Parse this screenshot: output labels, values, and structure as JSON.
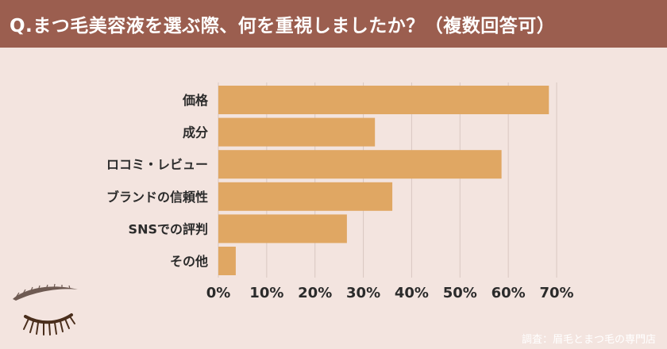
{
  "header": {
    "title": "Q.まつ毛美容液を選ぶ際、何を重視しましたか？（複数回答可）"
  },
  "colors": {
    "header_bg": "#9b5e4f",
    "background": "#f3e4df",
    "bar": "#e0a763",
    "grid": "#d9c7c1"
  },
  "chart_data": {
    "type": "bar",
    "orientation": "horizontal",
    "categories": [
      "価格",
      "成分",
      "ロコミ・レビュー",
      "ブランドの信頼性",
      "SNSでの評判",
      "その他"
    ],
    "values": [
      68.4,
      32.4,
      58.6,
      36.0,
      26.6,
      3.6
    ],
    "xlim": [
      0,
      70
    ],
    "xticks": [
      "0%",
      "10%",
      "20%",
      "30%",
      "40%",
      "50%",
      "60%",
      "70%"
    ],
    "grid": true
  },
  "footer": {
    "credit": "調査：眉毛とまつ毛の専門店"
  },
  "decoration": {
    "icon": "eyelash-eyebrow-icon"
  }
}
